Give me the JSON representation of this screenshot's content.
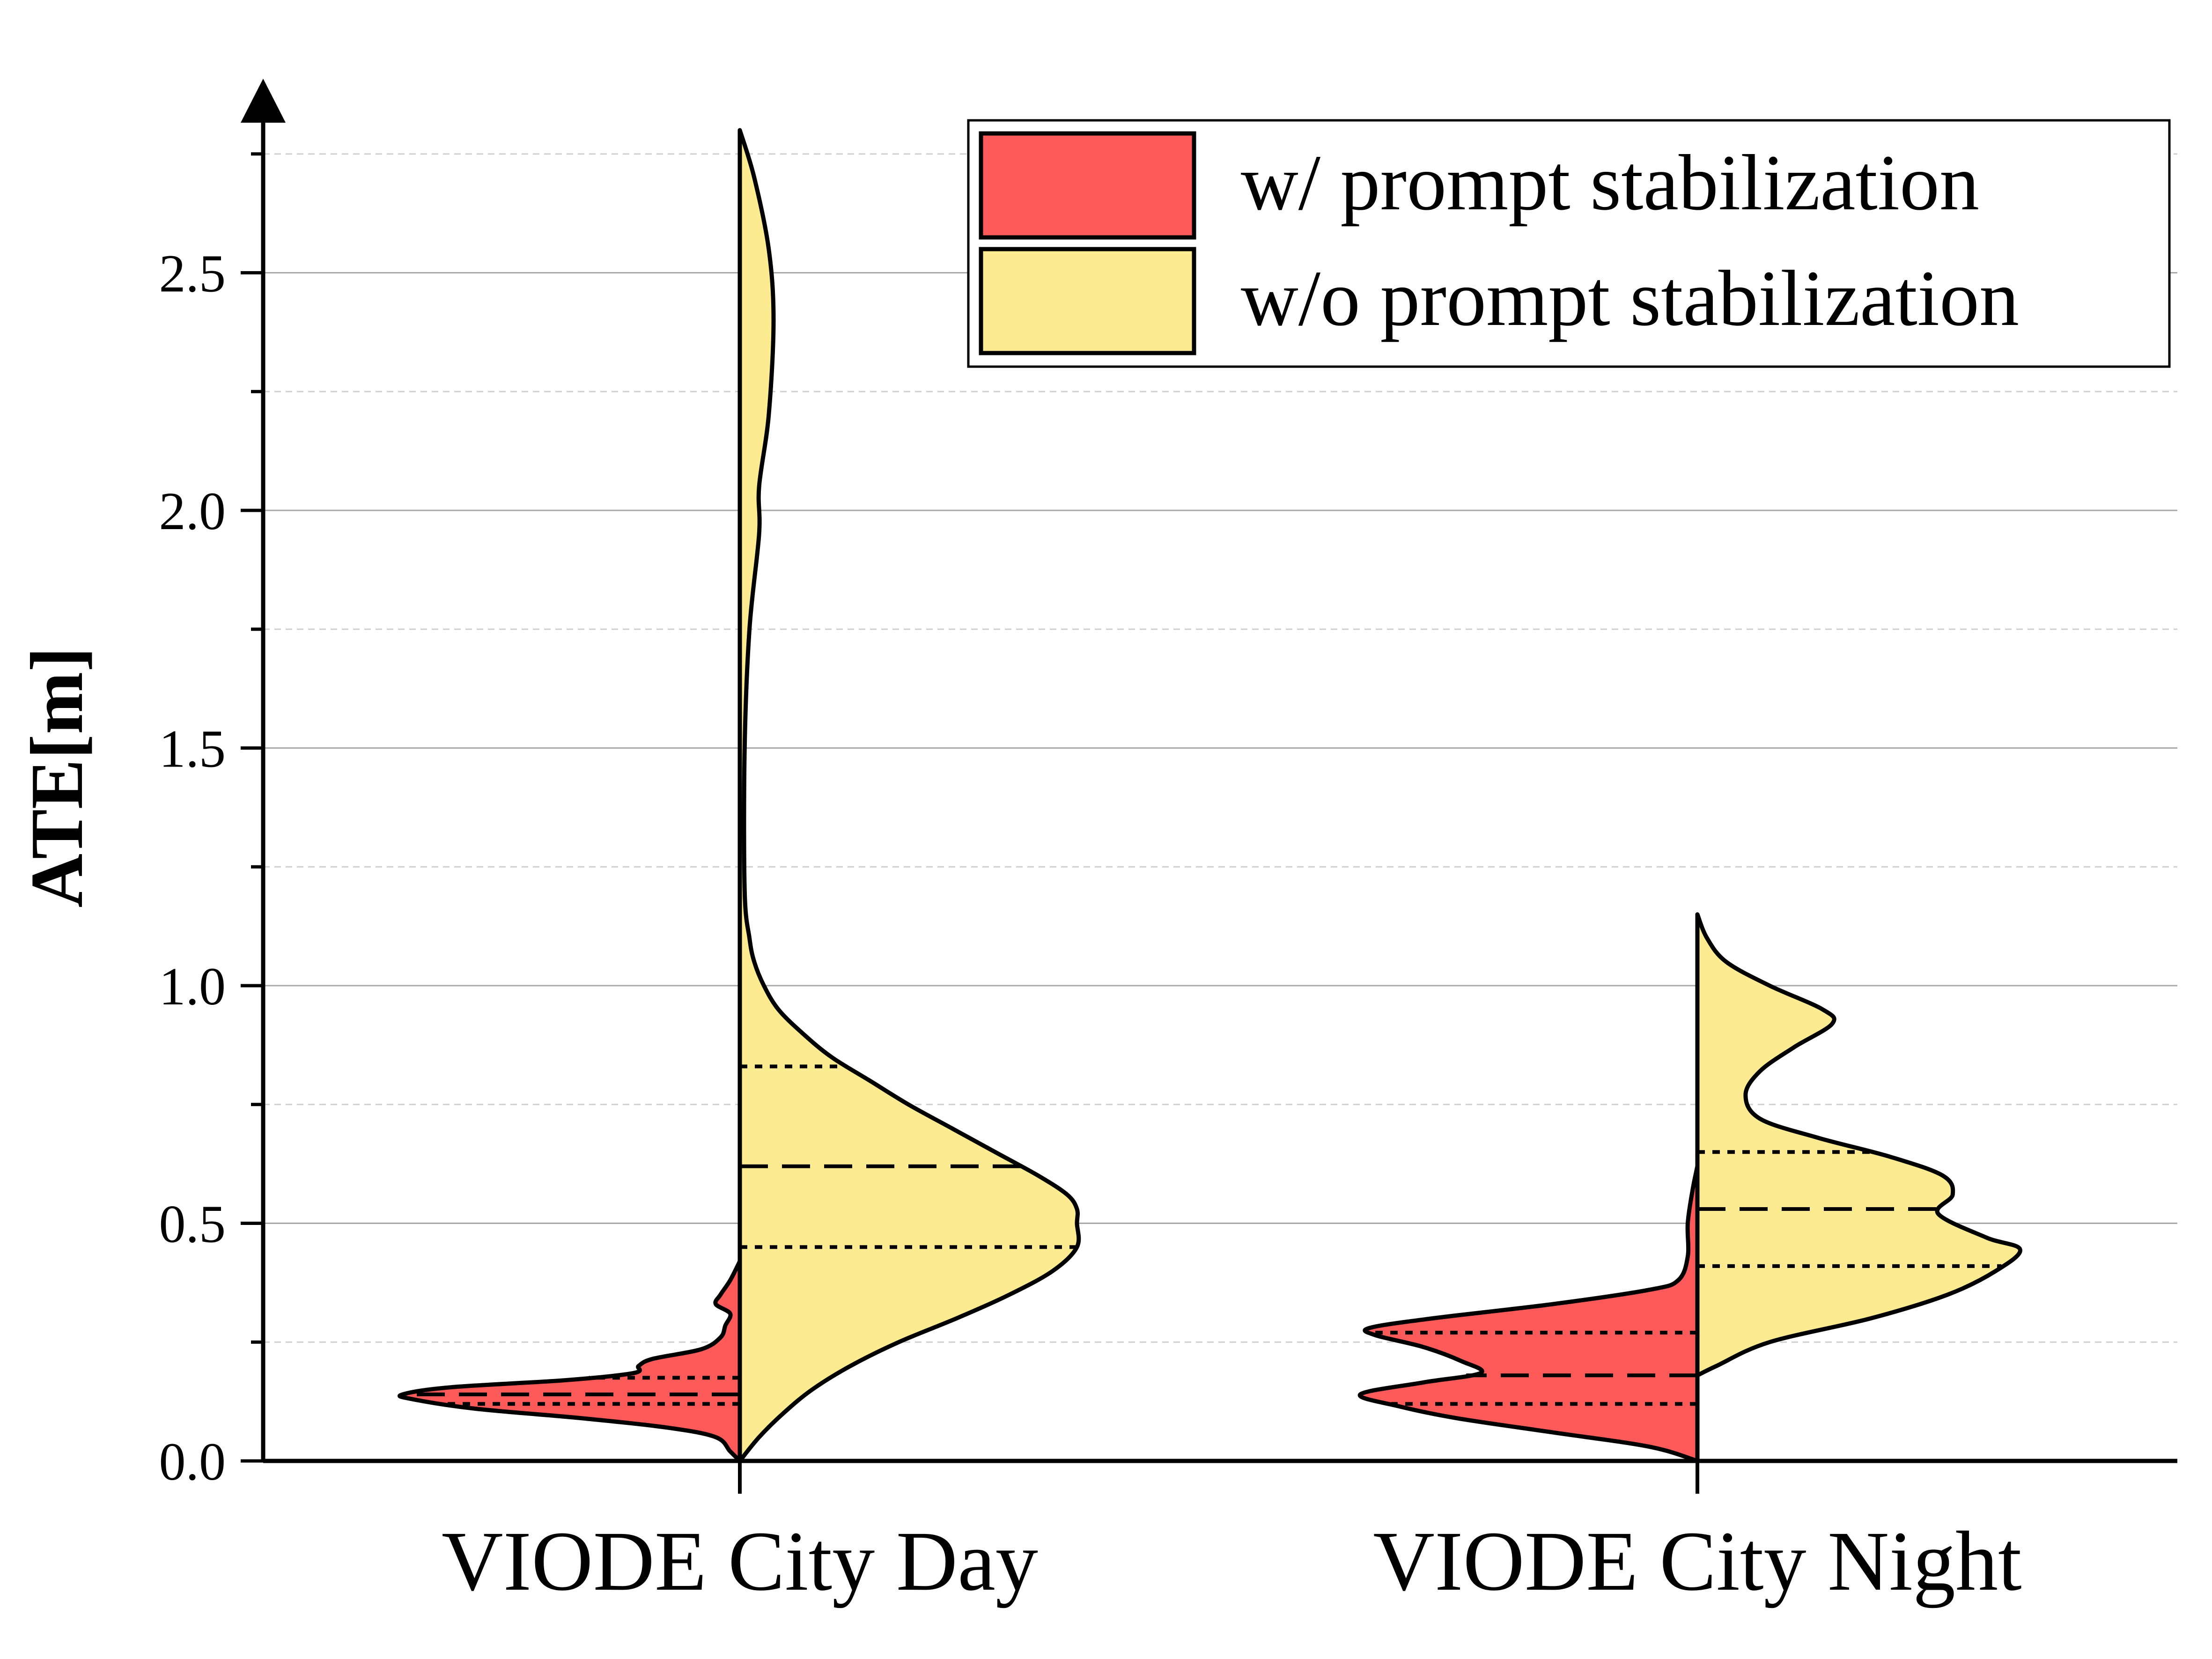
{
  "chart_data": {
    "type": "violin",
    "ylabel": "ATE[m]",
    "ylim": [
      0,
      2.8
    ],
    "y_ticks": [
      "0.0",
      "0.5",
      "1.0",
      "1.5",
      "2.0",
      "2.5"
    ],
    "grid": true,
    "legend_position": "top-right",
    "categories": [
      "VIODE City Day",
      "VIODE City Night"
    ],
    "series": [
      {
        "name": "w/ prompt stabilization",
        "color": "#FF5A5A",
        "side": "left",
        "groups": [
          {
            "category": "VIODE City Day",
            "max_density": 0.7,
            "quartiles": {
              "q1": 0.12,
              "median": 0.14,
              "q3": 0.175
            },
            "profile": [
              [
                0.0,
                0.0
              ],
              [
                0.02,
                0.02
              ],
              [
                0.05,
                0.05
              ],
              [
                0.07,
                0.15
              ],
              [
                0.09,
                0.33
              ],
              [
                0.11,
                0.55
              ],
              [
                0.13,
                0.68
              ],
              [
                0.14,
                0.7
              ],
              [
                0.155,
                0.6
              ],
              [
                0.17,
                0.36
              ],
              [
                0.185,
                0.22
              ],
              [
                0.2,
                0.21
              ],
              [
                0.215,
                0.18
              ],
              [
                0.235,
                0.08
              ],
              [
                0.26,
                0.04
              ],
              [
                0.285,
                0.03
              ],
              [
                0.31,
                0.02
              ],
              [
                0.33,
                0.05
              ],
              [
                0.35,
                0.04
              ],
              [
                0.38,
                0.02
              ],
              [
                0.42,
                0.0
              ]
            ]
          },
          {
            "category": "VIODE City Night",
            "max_density": 0.7,
            "quartiles": {
              "q1": 0.12,
              "median": 0.18,
              "q3": 0.27
            },
            "profile": [
              [
                0.0,
                0.0
              ],
              [
                0.03,
                0.1
              ],
              [
                0.06,
                0.3
              ],
              [
                0.09,
                0.5
              ],
              [
                0.115,
                0.62
              ],
              [
                0.14,
                0.7
              ],
              [
                0.165,
                0.57
              ],
              [
                0.185,
                0.45
              ],
              [
                0.21,
                0.49
              ],
              [
                0.24,
                0.57
              ],
              [
                0.265,
                0.67
              ],
              [
                0.28,
                0.68
              ],
              [
                0.3,
                0.55
              ],
              [
                0.33,
                0.3
              ],
              [
                0.36,
                0.1
              ],
              [
                0.38,
                0.04
              ],
              [
                0.43,
                0.02
              ],
              [
                0.5,
                0.02
              ],
              [
                0.57,
                0.01
              ],
              [
                0.62,
                0.0
              ]
            ]
          }
        ]
      },
      {
        "name": "w/o prompt stabilization",
        "color": "#FDEB91",
        "side": "right",
        "groups": [
          {
            "category": "VIODE City Day",
            "max_density": 0.7,
            "quartiles": {
              "q1": 0.45,
              "median": 0.62,
              "q3": 0.83
            },
            "profile": [
              [
                0.0,
                0.0
              ],
              [
                0.05,
                0.04
              ],
              [
                0.1,
                0.09
              ],
              [
                0.15,
                0.15
              ],
              [
                0.2,
                0.23
              ],
              [
                0.25,
                0.33
              ],
              [
                0.3,
                0.45
              ],
              [
                0.35,
                0.56
              ],
              [
                0.4,
                0.65
              ],
              [
                0.45,
                0.7
              ],
              [
                0.5,
                0.7
              ],
              [
                0.53,
                0.7
              ],
              [
                0.56,
                0.68
              ],
              [
                0.6,
                0.62
              ],
              [
                0.65,
                0.53
              ],
              [
                0.7,
                0.44
              ],
              [
                0.75,
                0.35
              ],
              [
                0.8,
                0.27
              ],
              [
                0.85,
                0.19
              ],
              [
                0.9,
                0.13
              ],
              [
                0.95,
                0.08
              ],
              [
                1.0,
                0.05
              ],
              [
                1.05,
                0.03
              ],
              [
                1.1,
                0.02
              ],
              [
                1.2,
                0.01
              ],
              [
                1.5,
                0.01
              ],
              [
                1.75,
                0.02
              ],
              [
                1.95,
                0.04
              ],
              [
                2.05,
                0.04
              ],
              [
                2.2,
                0.06
              ],
              [
                2.4,
                0.07
              ],
              [
                2.55,
                0.06
              ],
              [
                2.7,
                0.03
              ],
              [
                2.8,
                0.0
              ]
            ]
          },
          {
            "category": "VIODE City Night",
            "max_density": 0.7,
            "quartiles": {
              "q1": 0.41,
              "median": 0.53,
              "q3": 0.65
            },
            "profile": [
              [
                0.18,
                0.0
              ],
              [
                0.2,
                0.04
              ],
              [
                0.25,
                0.15
              ],
              [
                0.3,
                0.36
              ],
              [
                0.35,
                0.52
              ],
              [
                0.4,
                0.62
              ],
              [
                0.445,
                0.67
              ],
              [
                0.47,
                0.6
              ],
              [
                0.52,
                0.5
              ],
              [
                0.56,
                0.53
              ],
              [
                0.6,
                0.51
              ],
              [
                0.64,
                0.4
              ],
              [
                0.68,
                0.25
              ],
              [
                0.72,
                0.13
              ],
              [
                0.77,
                0.1
              ],
              [
                0.82,
                0.13
              ],
              [
                0.87,
                0.2
              ],
              [
                0.92,
                0.28
              ],
              [
                0.95,
                0.26
              ],
              [
                1.0,
                0.15
              ],
              [
                1.05,
                0.06
              ],
              [
                1.1,
                0.02
              ],
              [
                1.15,
                0.0
              ]
            ]
          }
        ]
      }
    ]
  }
}
